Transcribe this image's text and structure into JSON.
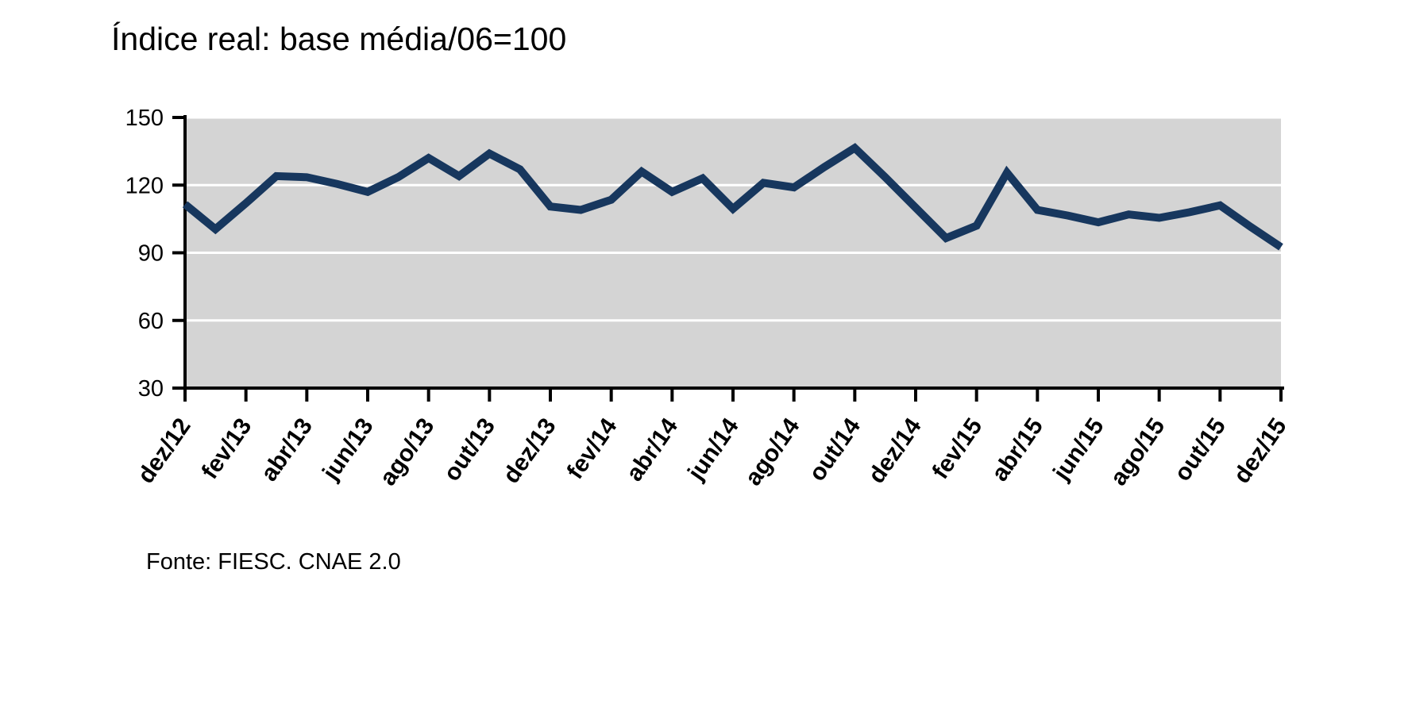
{
  "title": "Índice real: base média/06=100",
  "source_note": "Fonte: FIESC. CNAE 2.0",
  "colors": {
    "line": "#17375E",
    "plot_background": "#D4D4D4",
    "gridline": "#FFFFFF",
    "axis": "#000000",
    "text": "#000000",
    "page_background": "#FFFFFF"
  },
  "chart_data": {
    "type": "line",
    "title": "Índice real: base média/06=100",
    "series_name": "Índice real (base média/06=100)",
    "categories": [
      "dez/12",
      "jan/13",
      "fev/13",
      "mar/13",
      "abr/13",
      "mai/13",
      "jun/13",
      "jul/13",
      "ago/13",
      "set/13",
      "out/13",
      "nov/13",
      "dez/13",
      "jan/14",
      "fev/14",
      "mar/14",
      "abr/14",
      "mai/14",
      "jun/14",
      "jul/14",
      "ago/14",
      "set/14",
      "out/14",
      "nov/14",
      "dez/14",
      "jan/15",
      "fev/15",
      "mar/15",
      "abr/15",
      "mai/15",
      "jun/15",
      "jul/15",
      "ago/15",
      "set/15",
      "out/15",
      "nov/15",
      "dez/15"
    ],
    "values": [
      111.5,
      100.5,
      112,
      124,
      123.5,
      120.5,
      117,
      123.5,
      132,
      124,
      134,
      127,
      110.5,
      109,
      113.5,
      126,
      117,
      123,
      109.5,
      121,
      119,
      128,
      136.5,
      123.5,
      110,
      96.5,
      102,
      125.5,
      109,
      106.5,
      103.5,
      107,
      105.5,
      108,
      111,
      101.5,
      92.5
    ],
    "x_tick_labels": [
      "dez/12",
      "fev/13",
      "abr/13",
      "jun/13",
      "ago/13",
      "out/13",
      "dez/13",
      "fev/14",
      "abr/14",
      "jun/14",
      "ago/14",
      "out/14",
      "dez/14",
      "fev/15",
      "abr/15",
      "jun/15",
      "ago/15",
      "out/15",
      "dez/15"
    ],
    "x_tick_every_n_months": 2,
    "y_ticks": [
      30,
      60,
      90,
      120,
      150
    ],
    "ylim": [
      30,
      150
    ],
    "xlabel": "",
    "ylabel": "",
    "legend": "none",
    "grid": "horizontal white gridlines on gray plot area",
    "source": "Fonte: FIESC. CNAE 2.0"
  }
}
